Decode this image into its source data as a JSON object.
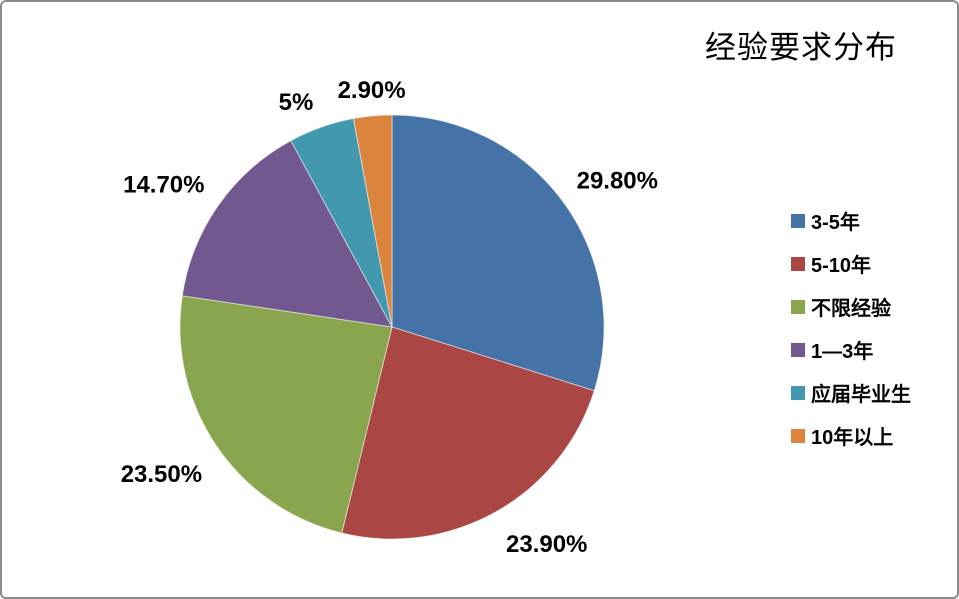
{
  "frame": {
    "background": "#FFFFFF",
    "border_color": "#8B8B8B"
  },
  "chart_data": {
    "type": "pie",
    "title": "经验要求分布",
    "categories": [
      "3-5年",
      "5-10年",
      "不限经验",
      "1—3年",
      "应届毕业生",
      "10年以上"
    ],
    "values": [
      29.8,
      23.9,
      23.5,
      14.7,
      5,
      2.9
    ],
    "data_labels": [
      "29.80%",
      "23.90%",
      "23.50%",
      "14.70%",
      "5%",
      "2.90%"
    ],
    "colors": [
      "#4572A7",
      "#AA4643",
      "#89A54E",
      "#71588F",
      "#4198AF",
      "#DB843D"
    ],
    "data_label_color": "#000000",
    "legend_position": "right",
    "start_angle_deg": 0,
    "direction": "clockwise",
    "grid": false
  }
}
